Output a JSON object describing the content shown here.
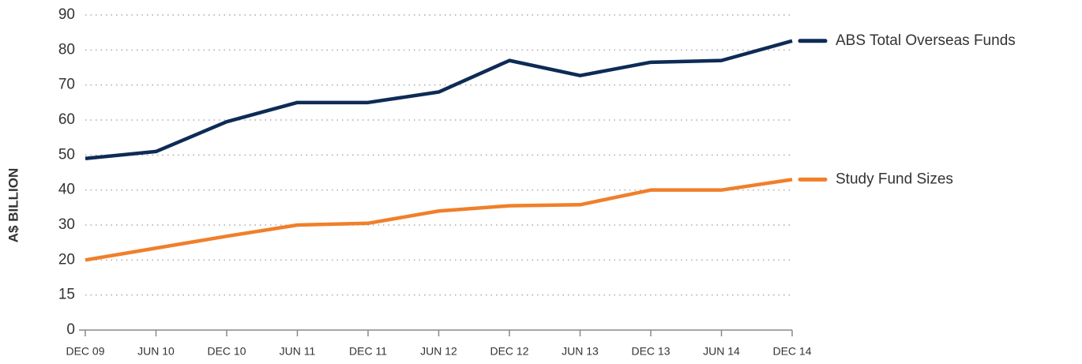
{
  "chart_data": {
    "type": "line",
    "ylabel": "A$ BILLION",
    "categories": [
      "DEC 09",
      "JUN 10",
      "DEC 10",
      "JUN 11",
      "DEC 11",
      "JUN 12",
      "DEC 12",
      "JUN 13",
      "DEC 13",
      "JUN 14",
      "DEC 14"
    ],
    "series": [
      {
        "name": "ABS Total Overseas Funds",
        "color": "#0d2b55",
        "values": [
          49,
          51,
          59.5,
          65,
          65,
          68,
          77,
          72.7,
          76.5,
          77,
          82.6
        ]
      },
      {
        "name": "Study Fund Sizes",
        "color": "#f07f2a",
        "values": [
          20,
          23.4,
          26.8,
          30,
          30.5,
          34,
          35.5,
          35.8,
          40,
          40,
          43
        ]
      }
    ],
    "ylim": [
      0,
      90
    ],
    "yticks": [
      0,
      15,
      20,
      30,
      40,
      50,
      60,
      70,
      80,
      90
    ],
    "grid": true
  }
}
